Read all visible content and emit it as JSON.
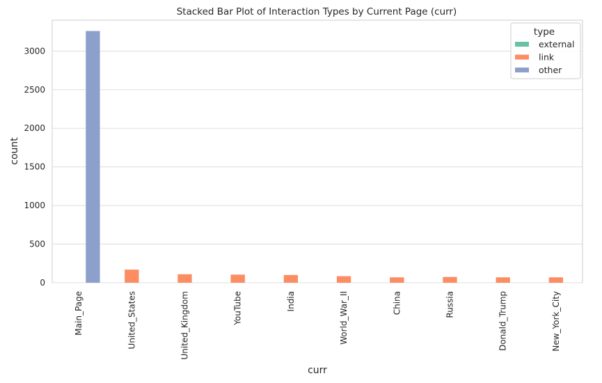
{
  "chart_data": {
    "type": "bar",
    "title": "Stacked Bar Plot of Interaction Types by Current Page (curr)",
    "xlabel": "curr",
    "ylabel": "count",
    "ylim": [
      0,
      3400
    ],
    "yticks": [
      0,
      500,
      1000,
      1500,
      2000,
      2500,
      3000
    ],
    "grid": true,
    "legend_title": "type",
    "legend_position": "top-right",
    "categories": [
      "Main_Page",
      "United_States",
      "United_Kingdom",
      "YouTube",
      "India",
      "World_War_II",
      "China",
      "Russia",
      "Donald_Trump",
      "New_York_City"
    ],
    "series": [
      {
        "name": "external",
        "color": "#66c2a5",
        "values": [
          0,
          0,
          0,
          0,
          0,
          0,
          0,
          0,
          0,
          0
        ]
      },
      {
        "name": "link",
        "color": "#fc8d62",
        "values": [
          0,
          170,
          110,
          105,
          100,
          85,
          70,
          75,
          70,
          70
        ]
      },
      {
        "name": "other",
        "color": "#8da0cb",
        "values": [
          3260,
          0,
          0,
          0,
          0,
          0,
          0,
          0,
          0,
          0
        ]
      }
    ]
  }
}
